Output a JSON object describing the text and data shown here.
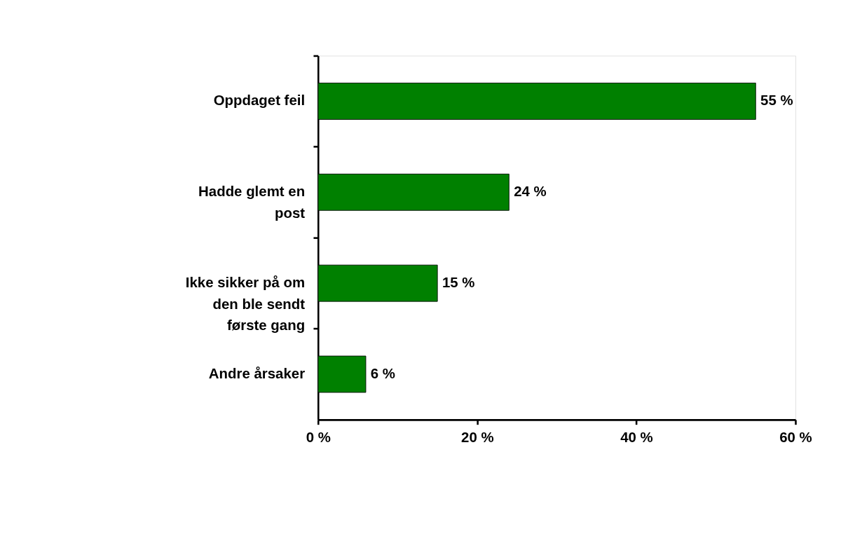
{
  "chart_data": {
    "type": "bar",
    "orientation": "horizontal",
    "categories": [
      "Oppdaget feil",
      "Hadde glemt en post",
      "Ikke sikker på om den ble sendt første gang",
      "Andre årsaker"
    ],
    "values": [
      55,
      24,
      15,
      6
    ],
    "value_labels": [
      "55 %",
      "24 %",
      "15 %",
      "6 %"
    ],
    "color": "#008000",
    "xlim": [
      0,
      60
    ],
    "xticks": [
      {
        "value": 0,
        "label": "0 %"
      },
      {
        "value": 20,
        "label": "20 %"
      },
      {
        "value": 40,
        "label": "40 %"
      },
      {
        "value": 60,
        "label": "60 %"
      }
    ],
    "grid": false
  }
}
